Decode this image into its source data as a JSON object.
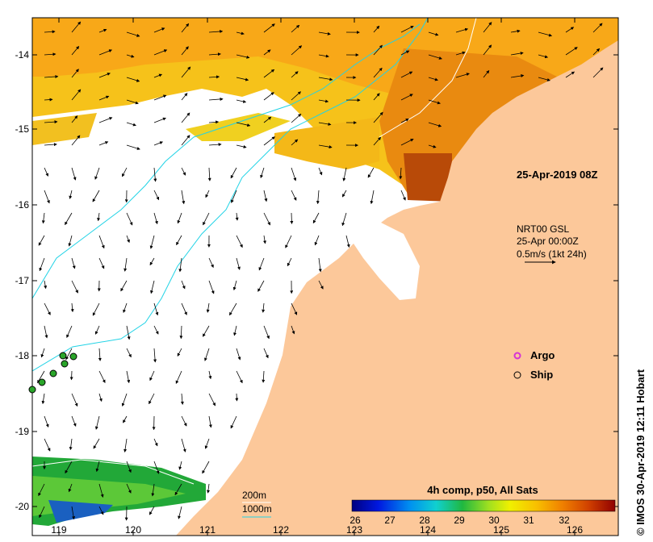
{
  "map": {
    "timestamp": "25-Apr-2019 08Z",
    "current_source": "NRT00 GSL",
    "current_time": "25-Apr 00:00Z",
    "current_scale": "0.5m/s (1kt 24h)",
    "legend_argo": "Argo",
    "legend_ship": "Ship",
    "contour_200": "200m",
    "contour_1000": "1000m",
    "colorbar_title": "4h comp, p50, All Sats",
    "credit": "© IMOS 30-Apr-2019 12:11 Hobart",
    "x_ticks": [
      "119",
      "120",
      "121",
      "122",
      "123",
      "124",
      "125",
      "126"
    ],
    "y_ticks": [
      "-14",
      "-15",
      "-16",
      "-17",
      "-18",
      "-19",
      "-20"
    ],
    "colorbar_ticks": [
      "26",
      "27",
      "28",
      "29",
      "30",
      "31",
      "32"
    ],
    "colors": {
      "land": "#fcc89a",
      "ocean_nodata": "#ffffff",
      "contour_200": "#ffffff",
      "contour_1000": "#22d3e6",
      "argo": "#d633d6",
      "ship_fill": "#2aa52a"
    }
  }
}
